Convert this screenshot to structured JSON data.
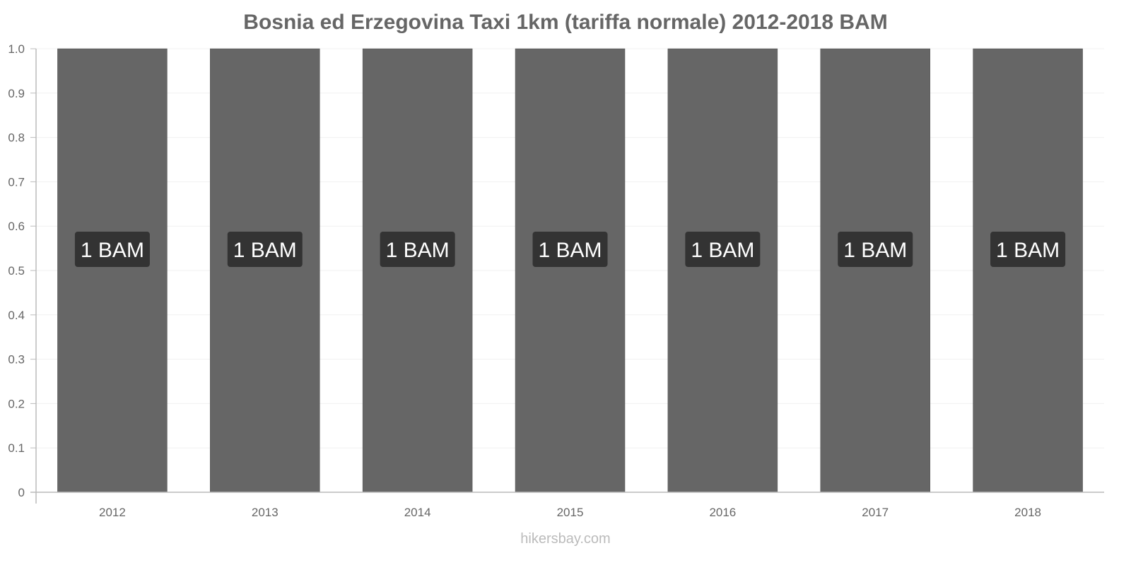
{
  "chart_data": {
    "type": "bar",
    "title": "Bosnia ed Erzegovina Taxi 1km (tariffa normale) 2012-2018 BAM",
    "categories": [
      "2012",
      "2013",
      "2014",
      "2015",
      "2016",
      "2017",
      "2018"
    ],
    "values": [
      1,
      1,
      1,
      1,
      1,
      1,
      1
    ],
    "data_labels": [
      "1 BAM",
      "1 BAM",
      "1 BAM",
      "1 BAM",
      "1 BAM",
      "1 BAM",
      "1 BAM"
    ],
    "xlabel": "",
    "ylabel": "",
    "ylim": [
      0,
      1.0
    ],
    "yticks": [
      "0",
      "0.1",
      "0.2",
      "0.3",
      "0.4",
      "0.5",
      "0.6",
      "0.7",
      "0.8",
      "0.9",
      "1.0"
    ],
    "grid": true,
    "legend": "none",
    "colors": {
      "bar": "#666666",
      "label_bg": "#333333",
      "label_text": "#ffffff",
      "axis": "#bbbbbb",
      "tick_text": "#666666"
    }
  },
  "footer": {
    "source": "hikersbay.com"
  }
}
